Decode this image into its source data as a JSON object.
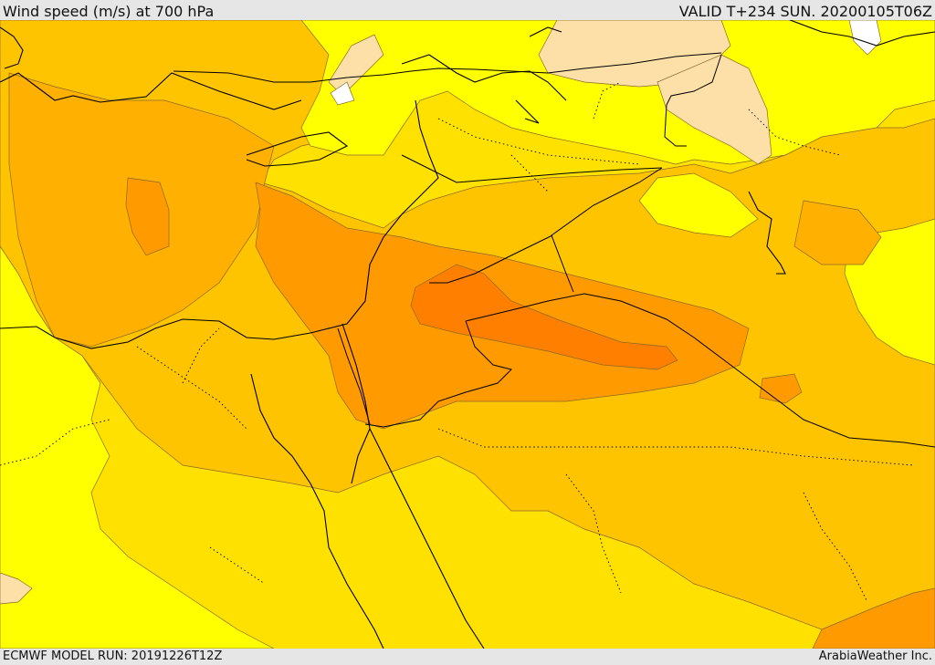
{
  "header": {
    "title": "Wind speed (m/s) at 700 hPa",
    "valid": "VALID T+234 SUN. 20200105T06Z"
  },
  "footer": {
    "model_run": "ECMWF MODEL RUN: 20191226T12Z",
    "credit": "ArabiaWeather Inc."
  },
  "colors": {
    "band_1": "#ffffff",
    "band_2": "#fde0a8",
    "band_3": "#ffff00",
    "band_4": "#ffe100",
    "band_5": "#ffc400",
    "band_6": "#ffb000",
    "band_7": "#ff9a00",
    "band_8": "#ff7f00"
  }
}
